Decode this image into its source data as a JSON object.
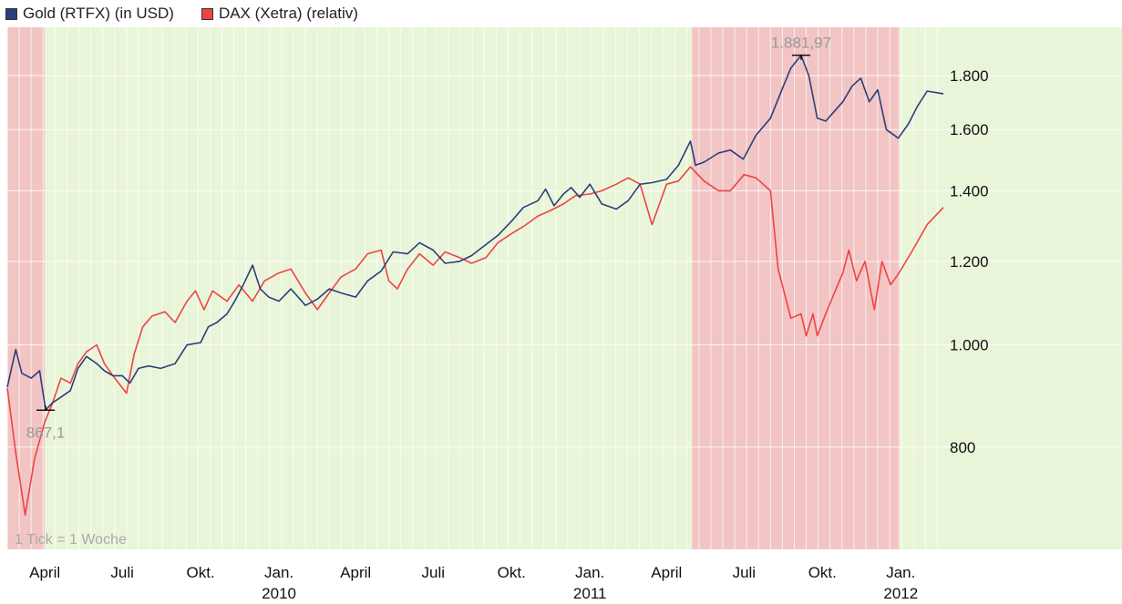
{
  "chart_data": {
    "type": "line",
    "title": "",
    "xlabel": "",
    "ylabel": "",
    "y_scale": "log",
    "y_range": [
      640,
      2000
    ],
    "x_range": [
      "2009-02-16",
      "2012-02-20"
    ],
    "grid": true,
    "legend_placement": "top-left",
    "y_ticks": [
      {
        "value": 800,
        "label": "800"
      },
      {
        "value": 1000,
        "label": "1.000"
      },
      {
        "value": 1200,
        "label": "1.200"
      },
      {
        "value": 1400,
        "label": "1.400"
      },
      {
        "value": 1600,
        "label": "1.600"
      },
      {
        "value": 1800,
        "label": "1.800"
      }
    ],
    "x_ticks": [
      {
        "date": "2009-04-01",
        "label": "April",
        "year": ""
      },
      {
        "date": "2009-07-01",
        "label": "Juli",
        "year": ""
      },
      {
        "date": "2009-10-01",
        "label": "Okt.",
        "year": ""
      },
      {
        "date": "2010-01-01",
        "label": "Jan.",
        "year": "2010"
      },
      {
        "date": "2010-04-01",
        "label": "April",
        "year": ""
      },
      {
        "date": "2010-07-01",
        "label": "Juli",
        "year": ""
      },
      {
        "date": "2010-10-01",
        "label": "Okt.",
        "year": ""
      },
      {
        "date": "2011-01-01",
        "label": "Jan.",
        "year": "2011"
      },
      {
        "date": "2011-04-01",
        "label": "April",
        "year": ""
      },
      {
        "date": "2011-07-01",
        "label": "Juli",
        "year": ""
      },
      {
        "date": "2011-10-01",
        "label": "Okt.",
        "year": ""
      },
      {
        "date": "2012-01-01",
        "label": "Jan.",
        "year": "2012"
      }
    ],
    "bands": [
      {
        "from": "2009-02-16",
        "to": "2009-04-01",
        "color": "#f2c4c4"
      },
      {
        "from": "2009-04-01",
        "to": "2011-05-01",
        "color": "#e9f5d8"
      },
      {
        "from": "2011-05-01",
        "to": "2011-12-30",
        "color": "#f2c4c4"
      },
      {
        "from": "2011-12-30",
        "to": "2012-02-20",
        "color": "#e9f5d8"
      }
    ],
    "annotations": [
      {
        "label": "867,1",
        "date": "2009-04-02",
        "value": 867.1,
        "placement": "below"
      },
      {
        "label": "1.881,97",
        "date": "2011-09-06",
        "value": 1881.97,
        "placement": "above"
      }
    ],
    "note": "1 Tick = 1 Woche",
    "series": [
      {
        "name": "Gold (RTFX) (in USD)",
        "color": "#2b3f7a",
        "points": [
          [
            "2009-02-16",
            912
          ],
          [
            "2009-02-26",
            990
          ],
          [
            "2009-03-05",
            940
          ],
          [
            "2009-03-16",
            930
          ],
          [
            "2009-03-26",
            945
          ],
          [
            "2009-04-02",
            867.1
          ],
          [
            "2009-04-09",
            880
          ],
          [
            "2009-04-18",
            890
          ],
          [
            "2009-05-01",
            905
          ],
          [
            "2009-05-10",
            950
          ],
          [
            "2009-05-20",
            975
          ],
          [
            "2009-06-01",
            960
          ],
          [
            "2009-06-10",
            945
          ],
          [
            "2009-06-20",
            935
          ],
          [
            "2009-07-01",
            935
          ],
          [
            "2009-07-10",
            920
          ],
          [
            "2009-07-20",
            950
          ],
          [
            "2009-08-01",
            955
          ],
          [
            "2009-08-15",
            950
          ],
          [
            "2009-09-01",
            960
          ],
          [
            "2009-09-15",
            1000
          ],
          [
            "2009-10-01",
            1005
          ],
          [
            "2009-10-10",
            1040
          ],
          [
            "2009-10-20",
            1050
          ],
          [
            "2009-11-01",
            1070
          ],
          [
            "2009-11-10",
            1100
          ],
          [
            "2009-11-20",
            1140
          ],
          [
            "2009-12-01",
            1190
          ],
          [
            "2009-12-10",
            1130
          ],
          [
            "2009-12-20",
            1110
          ],
          [
            "2010-01-01",
            1100
          ],
          [
            "2010-01-15",
            1130
          ],
          [
            "2010-02-01",
            1090
          ],
          [
            "2010-02-15",
            1105
          ],
          [
            "2010-03-01",
            1130
          ],
          [
            "2010-03-15",
            1120
          ],
          [
            "2010-04-01",
            1110
          ],
          [
            "2010-04-15",
            1150
          ],
          [
            "2010-05-01",
            1175
          ],
          [
            "2010-05-15",
            1225
          ],
          [
            "2010-06-01",
            1220
          ],
          [
            "2010-06-15",
            1250
          ],
          [
            "2010-07-01",
            1230
          ],
          [
            "2010-07-15",
            1195
          ],
          [
            "2010-08-01",
            1200
          ],
          [
            "2010-08-15",
            1215
          ],
          [
            "2010-09-01",
            1245
          ],
          [
            "2010-09-15",
            1270
          ],
          [
            "2010-10-01",
            1310
          ],
          [
            "2010-10-15",
            1350
          ],
          [
            "2010-11-01",
            1370
          ],
          [
            "2010-11-10",
            1405
          ],
          [
            "2010-11-20",
            1355
          ],
          [
            "2010-12-01",
            1390
          ],
          [
            "2010-12-10",
            1410
          ],
          [
            "2010-12-20",
            1380
          ],
          [
            "2011-01-01",
            1420
          ],
          [
            "2011-01-15",
            1360
          ],
          [
            "2011-02-01",
            1345
          ],
          [
            "2011-02-15",
            1370
          ],
          [
            "2011-03-01",
            1420
          ],
          [
            "2011-03-15",
            1425
          ],
          [
            "2011-04-01",
            1435
          ],
          [
            "2011-04-15",
            1480
          ],
          [
            "2011-04-29",
            1560
          ],
          [
            "2011-05-05",
            1480
          ],
          [
            "2011-05-15",
            1490
          ],
          [
            "2011-06-01",
            1520
          ],
          [
            "2011-06-15",
            1530
          ],
          [
            "2011-06-30",
            1500
          ],
          [
            "2011-07-15",
            1580
          ],
          [
            "2011-08-01",
            1640
          ],
          [
            "2011-08-15",
            1750
          ],
          [
            "2011-08-25",
            1830
          ],
          [
            "2011-09-06",
            1881.97
          ],
          [
            "2011-09-15",
            1800
          ],
          [
            "2011-09-25",
            1640
          ],
          [
            "2011-10-05",
            1630
          ],
          [
            "2011-10-15",
            1665
          ],
          [
            "2011-10-25",
            1700
          ],
          [
            "2011-11-05",
            1760
          ],
          [
            "2011-11-15",
            1790
          ],
          [
            "2011-11-25",
            1700
          ],
          [
            "2011-12-05",
            1745
          ],
          [
            "2011-12-15",
            1600
          ],
          [
            "2011-12-29",
            1570
          ],
          [
            "2012-01-10",
            1620
          ],
          [
            "2012-01-20",
            1680
          ],
          [
            "2012-02-01",
            1740
          ],
          [
            "2012-02-20",
            1730
          ]
        ]
      },
      {
        "name": "DAX (Xetra) (relativ)",
        "color": "#ee4444",
        "points": [
          [
            "2009-02-16",
            910
          ],
          [
            "2009-02-26",
            790
          ],
          [
            "2009-03-09",
            690
          ],
          [
            "2009-03-20",
            780
          ],
          [
            "2009-04-01",
            845
          ],
          [
            "2009-04-10",
            880
          ],
          [
            "2009-04-20",
            930
          ],
          [
            "2009-05-01",
            920
          ],
          [
            "2009-05-10",
            960
          ],
          [
            "2009-05-20",
            985
          ],
          [
            "2009-06-01",
            1000
          ],
          [
            "2009-06-10",
            960
          ],
          [
            "2009-06-20",
            935
          ],
          [
            "2009-07-06",
            900
          ],
          [
            "2009-07-15",
            980
          ],
          [
            "2009-07-25",
            1040
          ],
          [
            "2009-08-05",
            1065
          ],
          [
            "2009-08-20",
            1075
          ],
          [
            "2009-09-01",
            1050
          ],
          [
            "2009-09-15",
            1100
          ],
          [
            "2009-09-25",
            1125
          ],
          [
            "2009-10-05",
            1080
          ],
          [
            "2009-10-15",
            1125
          ],
          [
            "2009-11-01",
            1100
          ],
          [
            "2009-11-15",
            1140
          ],
          [
            "2009-12-01",
            1100
          ],
          [
            "2009-12-15",
            1150
          ],
          [
            "2010-01-01",
            1170
          ],
          [
            "2010-01-15",
            1180
          ],
          [
            "2010-02-01",
            1120
          ],
          [
            "2010-02-15",
            1080
          ],
          [
            "2010-03-01",
            1120
          ],
          [
            "2010-03-15",
            1160
          ],
          [
            "2010-04-01",
            1180
          ],
          [
            "2010-04-15",
            1220
          ],
          [
            "2010-05-01",
            1230
          ],
          [
            "2010-05-10",
            1150
          ],
          [
            "2010-05-20",
            1130
          ],
          [
            "2010-06-01",
            1180
          ],
          [
            "2010-06-15",
            1220
          ],
          [
            "2010-07-01",
            1190
          ],
          [
            "2010-07-15",
            1225
          ],
          [
            "2010-08-01",
            1210
          ],
          [
            "2010-08-15",
            1195
          ],
          [
            "2010-09-01",
            1210
          ],
          [
            "2010-09-15",
            1250
          ],
          [
            "2010-10-01",
            1275
          ],
          [
            "2010-10-15",
            1295
          ],
          [
            "2010-11-01",
            1325
          ],
          [
            "2010-11-15",
            1340
          ],
          [
            "2010-12-01",
            1360
          ],
          [
            "2010-12-15",
            1385
          ],
          [
            "2011-01-01",
            1390
          ],
          [
            "2011-01-15",
            1400
          ],
          [
            "2011-02-01",
            1420
          ],
          [
            "2011-02-15",
            1440
          ],
          [
            "2011-03-01",
            1420
          ],
          [
            "2011-03-15",
            1300
          ],
          [
            "2011-04-01",
            1420
          ],
          [
            "2011-04-15",
            1430
          ],
          [
            "2011-04-29",
            1475
          ],
          [
            "2011-05-15",
            1430
          ],
          [
            "2011-06-01",
            1400
          ],
          [
            "2011-06-15",
            1400
          ],
          [
            "2011-07-01",
            1450
          ],
          [
            "2011-07-15",
            1440
          ],
          [
            "2011-08-01",
            1400
          ],
          [
            "2011-08-10",
            1180
          ],
          [
            "2011-08-25",
            1060
          ],
          [
            "2011-09-06",
            1070
          ],
          [
            "2011-09-12",
            1020
          ],
          [
            "2011-09-20",
            1070
          ],
          [
            "2011-09-25",
            1020
          ],
          [
            "2011-10-05",
            1070
          ],
          [
            "2011-10-15",
            1120
          ],
          [
            "2011-10-25",
            1170
          ],
          [
            "2011-11-01",
            1230
          ],
          [
            "2011-11-10",
            1150
          ],
          [
            "2011-11-20",
            1200
          ],
          [
            "2011-12-01",
            1080
          ],
          [
            "2011-12-10",
            1200
          ],
          [
            "2011-12-20",
            1140
          ],
          [
            "2011-12-30",
            1170
          ],
          [
            "2012-01-15",
            1230
          ],
          [
            "2012-02-01",
            1300
          ],
          [
            "2012-02-20",
            1350
          ]
        ]
      }
    ]
  }
}
